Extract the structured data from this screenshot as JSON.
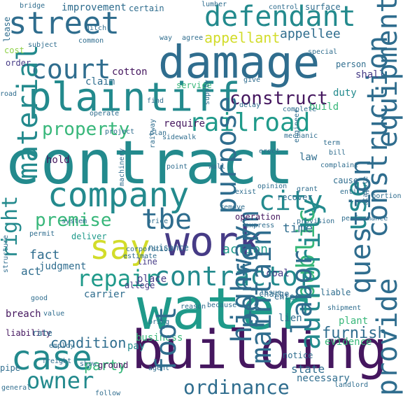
{
  "palette": {
    "dark_purple": "#45175f",
    "purple": "#463b86",
    "blue": "#355f8d",
    "steel": "#2f6d8e",
    "teal": "#238a8d",
    "sea": "#1f9a8a",
    "green": "#38b77a",
    "lime": "#8ed148",
    "yellow": "#d2dc2a"
  },
  "words": [
    {
      "text": "contract",
      "color": "teal"
    },
    {
      "text": "water",
      "color": "sea"
    },
    {
      "text": "building",
      "color": "dark_purple"
    },
    {
      "text": "damage",
      "color": "steel"
    },
    {
      "text": "plaintiff",
      "color": "teal"
    },
    {
      "text": "work",
      "color": "purple"
    },
    {
      "text": "company",
      "color": "teal"
    },
    {
      "text": "defendant",
      "color": "teal"
    },
    {
      "text": "street",
      "color": "steel"
    },
    {
      "text": "court",
      "color": "steel"
    },
    {
      "text": "say",
      "color": "yellow"
    },
    {
      "text": "case",
      "color": "teal"
    },
    {
      "text": "city",
      "color": "teal"
    },
    {
      "text": "contractor",
      "color": "teal"
    },
    {
      "text": "construction",
      "color": "steel"
    },
    {
      "text": "public",
      "color": "green"
    },
    {
      "text": "right",
      "color": "teal"
    },
    {
      "text": "material",
      "color": "teal"
    },
    {
      "text": "railroad",
      "color": "sea"
    },
    {
      "text": "repair",
      "color": "sea"
    },
    {
      "text": "tbe",
      "color": "steel"
    },
    {
      "text": "use",
      "color": "teal"
    },
    {
      "text": "owner",
      "color": "teal"
    },
    {
      "text": "premise",
      "color": "green"
    },
    {
      "text": "property",
      "color": "green"
    },
    {
      "text": "ordinance",
      "color": "steel"
    },
    {
      "text": "construct",
      "color": "dark_purple"
    },
    {
      "text": "appellant",
      "color": "yellow"
    },
    {
      "text": "appellee",
      "color": "steel"
    },
    {
      "text": "question",
      "color": "steel"
    },
    {
      "text": "furnish",
      "color": "steel"
    },
    {
      "text": "condition",
      "color": "steel"
    },
    {
      "text": "action",
      "color": "sea"
    },
    {
      "text": "time",
      "color": "steel"
    },
    {
      "text": "party",
      "color": "green"
    },
    {
      "text": "fact",
      "color": "steel"
    },
    {
      "text": "act",
      "color": "steel"
    },
    {
      "text": "improvement",
      "color": "steel"
    },
    {
      "text": "cotton",
      "color": "dark_purple"
    },
    {
      "text": "claim",
      "color": "steel"
    },
    {
      "text": "duty",
      "color": "teal"
    },
    {
      "text": "build",
      "color": "green"
    },
    {
      "text": "shall",
      "color": "purple"
    },
    {
      "text": "judgment",
      "color": "steel"
    },
    {
      "text": "carrier",
      "color": "steel"
    },
    {
      "text": "business",
      "color": "green"
    },
    {
      "text": "breach",
      "color": "dark_purple"
    },
    {
      "text": "lien",
      "color": "steel"
    },
    {
      "text": "plant",
      "color": "green"
    },
    {
      "text": "pay",
      "color": "teal"
    },
    {
      "text": "state",
      "color": "steel"
    },
    {
      "text": "coal",
      "color": "purple"
    },
    {
      "text": "line",
      "color": "purple"
    },
    {
      "text": "place",
      "color": "purple"
    },
    {
      "text": "law",
      "color": "steel"
    },
    {
      "text": "hold",
      "color": "dark_purple"
    },
    {
      "text": "require",
      "color": "dark_purple"
    },
    {
      "text": "order",
      "color": "purple"
    },
    {
      "text": "cost",
      "color": "lime"
    },
    {
      "text": "lease",
      "color": "steel"
    },
    {
      "text": "bridge",
      "color": "steel"
    },
    {
      "text": "way",
      "color": "steel"
    },
    {
      "text": "agree",
      "color": "steel"
    },
    {
      "text": "service",
      "color": "green"
    },
    {
      "text": "purpose",
      "color": "steel"
    },
    {
      "text": "maintain",
      "color": "steel"
    },
    {
      "text": "perform",
      "color": "steel"
    },
    {
      "text": "provide",
      "color": "steel"
    },
    {
      "text": "necessary",
      "color": "steel"
    },
    {
      "text": "liability",
      "color": "dark_purple"
    },
    {
      "text": "allege",
      "color": "purple"
    },
    {
      "text": "deliver",
      "color": "sea"
    },
    {
      "text": "operation",
      "color": "dark_purple"
    },
    {
      "text": "plan",
      "color": "steel"
    },
    {
      "text": "project",
      "color": "steel"
    },
    {
      "text": "complete",
      "color": "steel"
    },
    {
      "text": "term",
      "color": "steel"
    },
    {
      "text": "supply",
      "color": "steel"
    },
    {
      "text": "enter",
      "color": "steel"
    },
    {
      "text": "evidence",
      "color": "green"
    },
    {
      "text": "authority",
      "color": "teal"
    },
    {
      "text": "labor",
      "color": "steel"
    },
    {
      "text": "highway",
      "color": "steel"
    },
    {
      "text": "ground",
      "color": "dark_purple"
    },
    {
      "text": "foot",
      "color": "steel"
    },
    {
      "text": "surface",
      "color": "steel"
    },
    {
      "text": "equipment",
      "color": "steel"
    },
    {
      "text": "certain",
      "color": "steel"
    },
    {
      "text": "person",
      "color": "steel"
    },
    {
      "text": "recover",
      "color": "steel"
    },
    {
      "text": "opinion",
      "color": "steel"
    },
    {
      "text": "nuisance",
      "color": "steel"
    },
    {
      "text": "estimate",
      "color": "steel"
    },
    {
      "text": "price",
      "color": "steel"
    },
    {
      "text": "ditch",
      "color": "steel"
    },
    {
      "text": "common",
      "color": "steel"
    },
    {
      "text": "permit",
      "color": "steel"
    },
    {
      "text": "system",
      "color": "steel"
    },
    {
      "text": "sidewalk",
      "color": "steel"
    },
    {
      "text": "charge",
      "color": "steel"
    },
    {
      "text": "liable",
      "color": "steel"
    },
    {
      "text": "cause",
      "color": "steel"
    },
    {
      "text": "provision",
      "color": "steel"
    },
    {
      "text": "engineer",
      "color": "steel"
    },
    {
      "text": "erect",
      "color": "steel"
    },
    {
      "text": "point",
      "color": "steel"
    },
    {
      "text": "wall",
      "color": "steel"
    },
    {
      "text": "railway",
      "color": "steel"
    },
    {
      "text": "statute",
      "color": "steel"
    },
    {
      "text": "notice",
      "color": "steel"
    },
    {
      "text": "shipment",
      "color": "steel"
    },
    {
      "text": "bill",
      "color": "steel"
    },
    {
      "text": "rate",
      "color": "steel"
    },
    {
      "text": "pipe",
      "color": "steel"
    },
    {
      "text": "general",
      "color": "steel"
    },
    {
      "text": "freight",
      "color": "steel"
    },
    {
      "text": "agent",
      "color": "steel"
    },
    {
      "text": "follow",
      "color": "steel"
    },
    {
      "text": "lumber",
      "color": "steel"
    },
    {
      "text": "control",
      "color": "steel"
    },
    {
      "text": "give",
      "color": "steel"
    },
    {
      "text": "delay",
      "color": "steel"
    },
    {
      "text": "road",
      "color": "steel"
    },
    {
      "text": "structure",
      "color": "steel"
    },
    {
      "text": "reason",
      "color": "steel"
    },
    {
      "text": "because",
      "color": "steel"
    },
    {
      "text": "machinery",
      "color": "steel"
    },
    {
      "text": "remove",
      "color": "steel"
    },
    {
      "text": "exist",
      "color": "steel"
    },
    {
      "text": "complaint",
      "color": "steel"
    },
    {
      "text": "show",
      "color": "steel"
    },
    {
      "text": "find",
      "color": "steel"
    },
    {
      "text": "issue",
      "color": "steel"
    },
    {
      "text": "good",
      "color": "steel"
    },
    {
      "text": "bring",
      "color": "steel"
    },
    {
      "text": "subject",
      "color": "steel"
    },
    {
      "text": "operate",
      "color": "steel"
    },
    {
      "text": "special",
      "color": "steel"
    },
    {
      "text": "portion",
      "color": "steel"
    },
    {
      "text": "performance",
      "color": "steel"
    },
    {
      "text": "mechanic",
      "color": "steel"
    },
    {
      "text": "express",
      "color": "steel"
    },
    {
      "text": "grant",
      "color": "steel"
    },
    {
      "text": "corporation",
      "color": "steel"
    },
    {
      "text": "landlord",
      "color": "steel"
    },
    {
      "text": "value",
      "color": "steel"
    },
    {
      "text": "employ",
      "color": "steel"
    },
    {
      "text": "entitle",
      "color": "steel"
    }
  ]
}
